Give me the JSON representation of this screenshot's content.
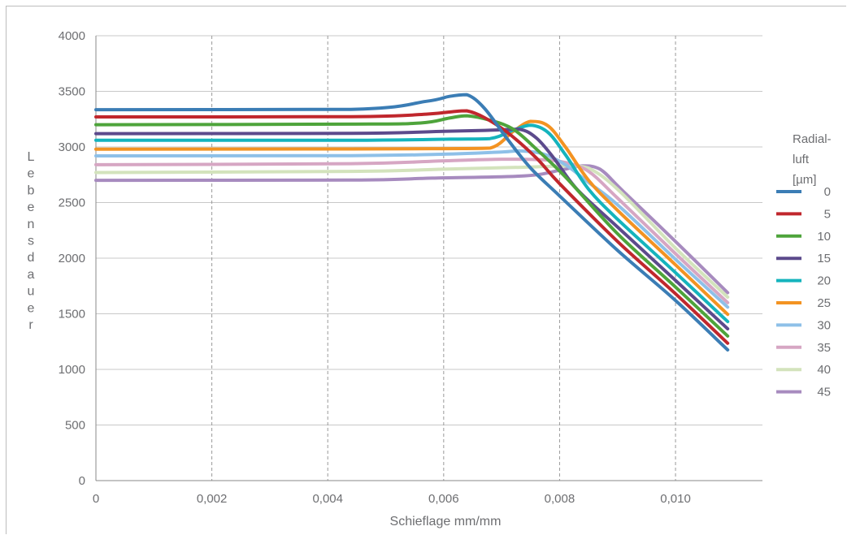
{
  "chart_data": {
    "type": "line",
    "xlabel": "Schieflage mm/mm",
    "ylabel": "Lebensdauer",
    "xlim": [
      0,
      0.0115
    ],
    "ylim": [
      0,
      4000
    ],
    "x_ticks": [
      0,
      0.002,
      0.004,
      0.006,
      0.008,
      0.01
    ],
    "x_tick_labels": [
      "0",
      "0,002",
      "0,004",
      "0,006",
      "0,008",
      "0,010"
    ],
    "y_ticks": [
      0,
      500,
      1000,
      1500,
      2000,
      2500,
      3000,
      3500,
      4000
    ],
    "y_tick_labels": [
      "0",
      "500",
      "1000",
      "1500",
      "2000",
      "2500",
      "3000",
      "3500",
      "4000"
    ],
    "grid": {
      "x": "dashed",
      "y": "solid"
    },
    "legend": {
      "position": "right",
      "title_lines": [
        "Radial-",
        "luft",
        "[µm]"
      ]
    },
    "series": [
      {
        "name": "0",
        "color": "#3b7db5",
        "points": [
          [
            0,
            3335
          ],
          [
            0.0044,
            3338
          ],
          [
            0.0057,
            3410
          ],
          [
            0.0061,
            3455
          ],
          [
            0.0064,
            3470
          ],
          [
            0.0067,
            3350
          ],
          [
            0.0071,
            3070
          ],
          [
            0.0075,
            2810
          ],
          [
            0.008,
            2560
          ],
          [
            0.009,
            2070
          ],
          [
            0.01,
            1620
          ],
          [
            0.0109,
            1175
          ]
        ]
      },
      {
        "name": "5",
        "color": "#c0272d",
        "points": [
          [
            0,
            3270
          ],
          [
            0.0044,
            3272
          ],
          [
            0.0057,
            3295
          ],
          [
            0.0062,
            3320
          ],
          [
            0.0064,
            3325
          ],
          [
            0.0067,
            3265
          ],
          [
            0.0071,
            3130
          ],
          [
            0.0076,
            2900
          ],
          [
            0.008,
            2670
          ],
          [
            0.009,
            2150
          ],
          [
            0.01,
            1680
          ],
          [
            0.0109,
            1235
          ]
        ]
      },
      {
        "name": "10",
        "color": "#4ea43b",
        "points": [
          [
            0,
            3200
          ],
          [
            0.0044,
            3205
          ],
          [
            0.0056,
            3215
          ],
          [
            0.0061,
            3260
          ],
          [
            0.0064,
            3280
          ],
          [
            0.0068,
            3240
          ],
          [
            0.0072,
            3160
          ],
          [
            0.0076,
            2980
          ],
          [
            0.0081,
            2730
          ],
          [
            0.009,
            2220
          ],
          [
            0.01,
            1740
          ],
          [
            0.0109,
            1300
          ]
        ]
      },
      {
        "name": "15",
        "color": "#5c4a8c",
        "points": [
          [
            0,
            3120
          ],
          [
            0.0044,
            3122
          ],
          [
            0.006,
            3140
          ],
          [
            0.0068,
            3150
          ],
          [
            0.0073,
            3160
          ],
          [
            0.0076,
            3080
          ],
          [
            0.0079,
            2900
          ],
          [
            0.0083,
            2620
          ],
          [
            0.009,
            2280
          ],
          [
            0.01,
            1800
          ],
          [
            0.0109,
            1365
          ]
        ]
      },
      {
        "name": "20",
        "color": "#15b4bd",
        "points": [
          [
            0,
            3060
          ],
          [
            0.0044,
            3060
          ],
          [
            0.0061,
            3070
          ],
          [
            0.0068,
            3075
          ],
          [
            0.0072,
            3150
          ],
          [
            0.0075,
            3195
          ],
          [
            0.0078,
            3130
          ],
          [
            0.0081,
            2930
          ],
          [
            0.0085,
            2620
          ],
          [
            0.009,
            2350
          ],
          [
            0.01,
            1870
          ],
          [
            0.0109,
            1430
          ]
        ]
      },
      {
        "name": "25",
        "color": "#f39322",
        "points": [
          [
            0,
            2980
          ],
          [
            0.0044,
            2982
          ],
          [
            0.006,
            2985
          ],
          [
            0.0068,
            2990
          ],
          [
            0.0072,
            3140
          ],
          [
            0.0075,
            3230
          ],
          [
            0.0078,
            3190
          ],
          [
            0.0081,
            3000
          ],
          [
            0.0085,
            2700
          ],
          [
            0.009,
            2430
          ],
          [
            0.01,
            1940
          ],
          [
            0.0109,
            1495
          ]
        ]
      },
      {
        "name": "30",
        "color": "#8ec0e8",
        "points": [
          [
            0,
            2920
          ],
          [
            0.0044,
            2922
          ],
          [
            0.006,
            2935
          ],
          [
            0.007,
            2955
          ],
          [
            0.0073,
            2965
          ],
          [
            0.0077,
            2940
          ],
          [
            0.0081,
            2840
          ],
          [
            0.0085,
            2680
          ],
          [
            0.009,
            2480
          ],
          [
            0.01,
            1990
          ],
          [
            0.0109,
            1560
          ]
        ]
      },
      {
        "name": "35",
        "color": "#d6a6c3",
        "points": [
          [
            0,
            2840
          ],
          [
            0.0044,
            2850
          ],
          [
            0.006,
            2875
          ],
          [
            0.007,
            2890
          ],
          [
            0.0077,
            2885
          ],
          [
            0.0081,
            2860
          ],
          [
            0.0085,
            2780
          ],
          [
            0.009,
            2540
          ],
          [
            0.01,
            2040
          ],
          [
            0.0109,
            1600
          ]
        ]
      },
      {
        "name": "40",
        "color": "#d3e3bc",
        "points": [
          [
            0,
            2770
          ],
          [
            0.0044,
            2780
          ],
          [
            0.006,
            2800
          ],
          [
            0.0072,
            2815
          ],
          [
            0.0078,
            2825
          ],
          [
            0.0082,
            2830
          ],
          [
            0.0085,
            2810
          ],
          [
            0.009,
            2620
          ],
          [
            0.01,
            2090
          ],
          [
            0.0109,
            1650
          ]
        ]
      },
      {
        "name": "45",
        "color": "#a78bbf",
        "points": [
          [
            0,
            2700
          ],
          [
            0.0044,
            2702
          ],
          [
            0.0058,
            2720
          ],
          [
            0.0074,
            2740
          ],
          [
            0.008,
            2790
          ],
          [
            0.0084,
            2830
          ],
          [
            0.0087,
            2800
          ],
          [
            0.0091,
            2600
          ],
          [
            0.01,
            2150
          ],
          [
            0.0109,
            1690
          ]
        ]
      }
    ]
  }
}
